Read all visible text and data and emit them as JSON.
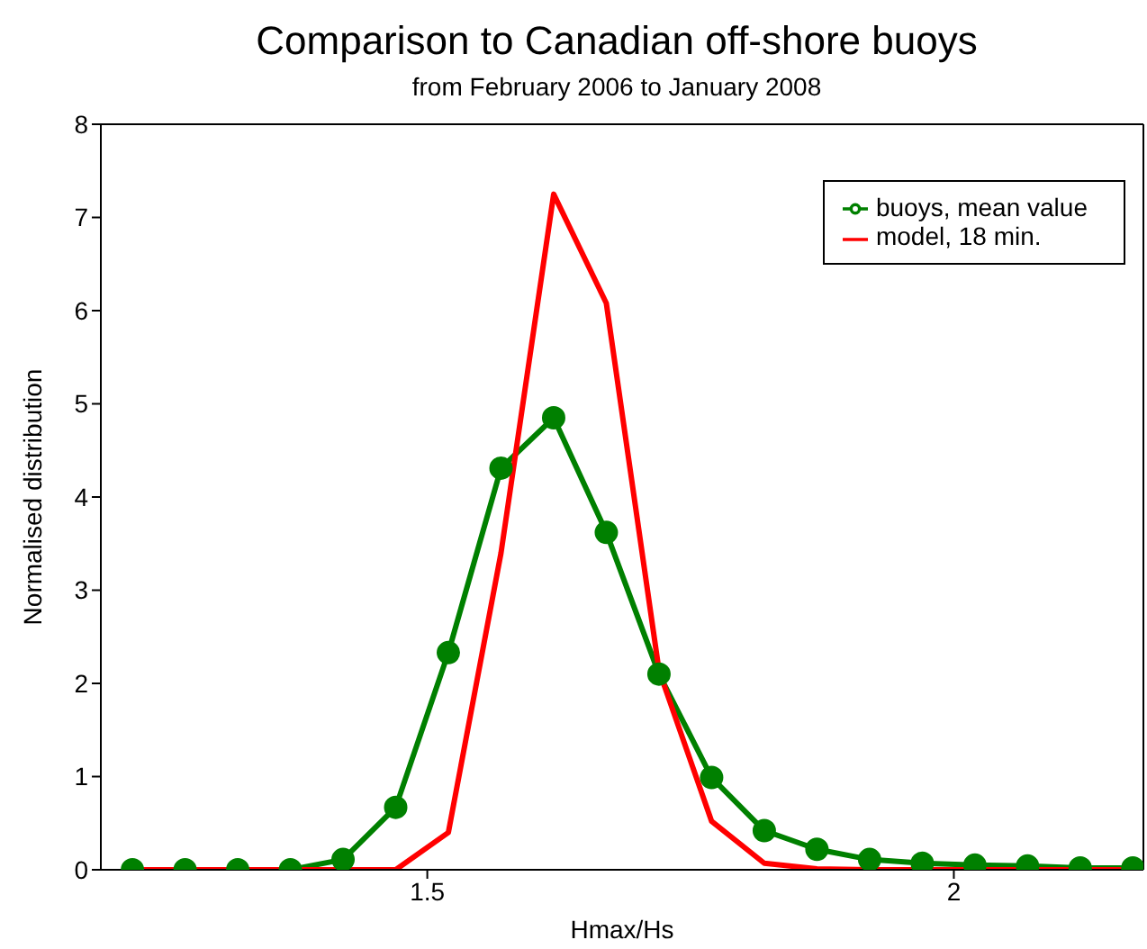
{
  "chart_data": {
    "type": "line",
    "title": "Comparison to Canadian off-shore buoys",
    "subtitle": "from February 2006 to January 2008",
    "xlabel": "Hmax/Hs",
    "ylabel": "Normalised distribution",
    "x": [
      1.22,
      1.27,
      1.32,
      1.37,
      1.42,
      1.47,
      1.52,
      1.57,
      1.62,
      1.67,
      1.72,
      1.77,
      1.82,
      1.87,
      1.92,
      1.97,
      2.02,
      2.07,
      2.12,
      2.17
    ],
    "series": [
      {
        "name": "buoys, mean value",
        "color": "#008000",
        "marker": "circle",
        "values": [
          0,
          0,
          0,
          0,
          0.11,
          0.67,
          2.33,
          4.31,
          4.85,
          3.62,
          2.1,
          0.99,
          0.42,
          0.22,
          0.11,
          0.07,
          0.05,
          0.04,
          0.02,
          0.02
        ]
      },
      {
        "name": "model, 18 min.",
        "color": "#ff0000",
        "marker": "none",
        "values": [
          0,
          0,
          0,
          0,
          0,
          0,
          0.4,
          3.4,
          7.25,
          6.08,
          2.14,
          0.52,
          0.07,
          0.01,
          0,
          0,
          0,
          0,
          0,
          0
        ]
      }
    ],
    "xlim": [
      1.19,
      2.18
    ],
    "xticks": [
      1.5,
      2
    ],
    "ylim": [
      0,
      8
    ],
    "yticks": [
      0,
      1,
      2,
      3,
      4,
      5,
      6,
      7,
      8
    ],
    "grid": false,
    "legend": "top right",
    "line_style": "solid"
  }
}
